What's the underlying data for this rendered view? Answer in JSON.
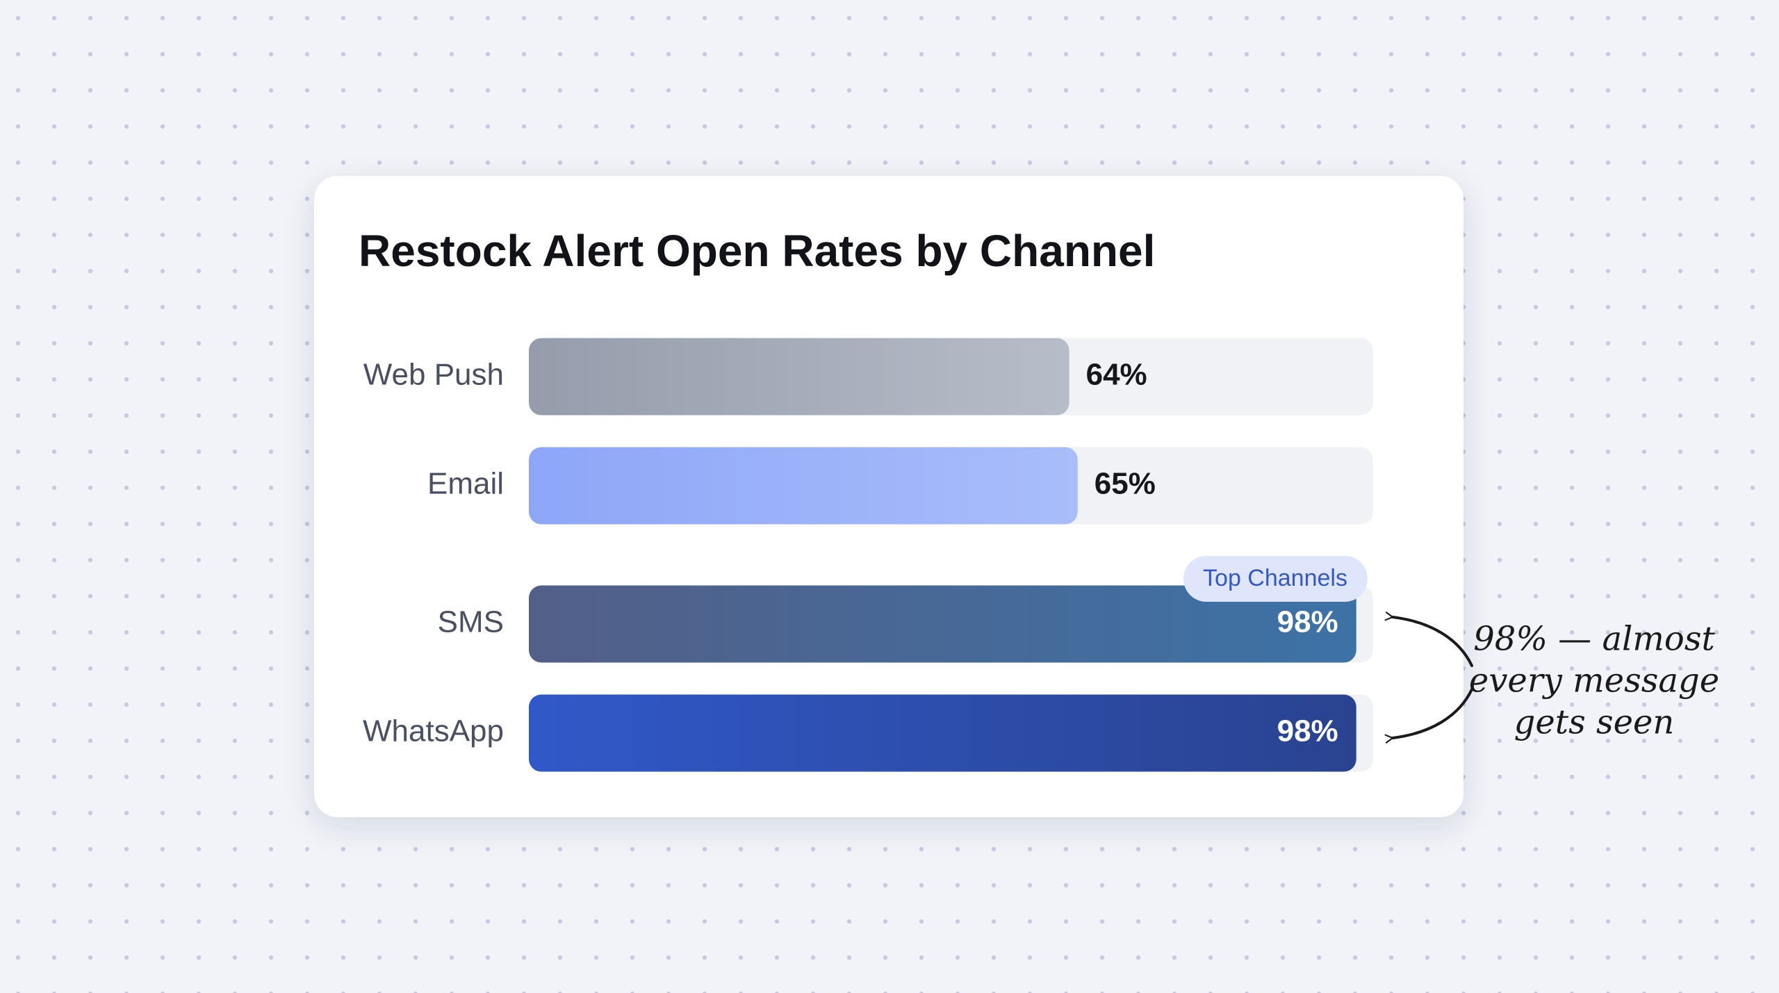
{
  "chart_data": {
    "type": "hbar",
    "title": "Restock Alert Open Rates by Channel",
    "categories": [
      "Web Push",
      "Email",
      "SMS",
      "WhatsApp"
    ],
    "values": [
      64,
      65,
      98,
      98
    ],
    "value_labels": [
      "64%",
      "65%",
      "98%",
      "98%"
    ],
    "colors": [
      [
        "#959cab",
        "#b7bdc8"
      ],
      [
        "#8ea6f8",
        "#a9bdfa"
      ],
      [
        "#525f88",
        "#3d72a6"
      ],
      [
        "#3058c8",
        "#2a4390"
      ]
    ],
    "xlim": [
      0,
      100
    ],
    "group_label": "Top Channels",
    "annotation": [
      "98% — almost",
      "every message",
      "gets seen"
    ]
  }
}
